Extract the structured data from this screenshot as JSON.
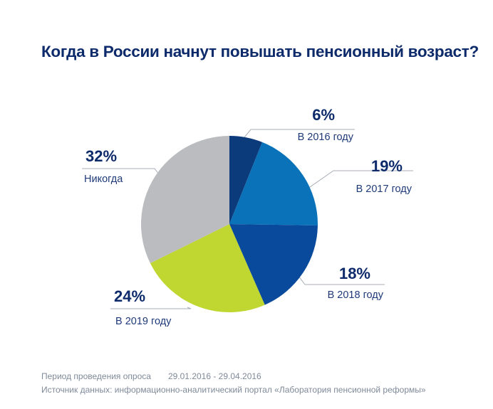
{
  "chart_data": {
    "type": "pie",
    "title": "Когда в России начнут повышать пенсионный возраст?",
    "slices": [
      {
        "label": "В 2016 году",
        "pct_label": "6%",
        "value": 6,
        "color": "#0b3b7a"
      },
      {
        "label": "В 2017 году",
        "pct_label": "19%",
        "value": 19,
        "color": "#0a72b8"
      },
      {
        "label": "В 2018 году",
        "pct_label": "18%",
        "value": 18,
        "color": "#0a4a9c"
      },
      {
        "label": "В 2019 году",
        "pct_label": "24%",
        "value": 24,
        "color": "#c0d731"
      },
      {
        "label": "Никогда",
        "pct_label": "32%",
        "value": 32,
        "color": "#babcbf"
      }
    ],
    "start_angle": "12 o'clock",
    "direction": "clockwise",
    "legend": "none"
  },
  "footer": {
    "period_label": "Период проведения опроса",
    "period_value": "29.01.2016 - 29.04.2016",
    "source": "Источник данных: информационно-аналитический портал «Лаборатория пенсионной реформы»"
  },
  "colors": {
    "title": "#0d2a6b",
    "leader_line": "#a7adb6",
    "footer_text": "#7f8a99"
  }
}
